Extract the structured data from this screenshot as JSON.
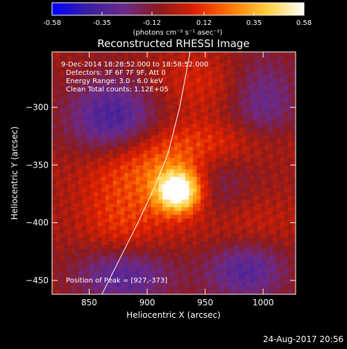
{
  "chart_data": {
    "type": "heatmap",
    "title": "Reconstructed RHESSI Image",
    "xlabel": "Heliocentric X (arcsec)",
    "ylabel": "Heliocentric Y (arcsec)",
    "xlim": [
      818,
      1028
    ],
    "ylim": [
      -462,
      -252
    ],
    "x_ticks": [
      850,
      900,
      950,
      1000
    ],
    "y_ticks": [
      -300,
      -350,
      -400,
      -450
    ],
    "colorbar": {
      "min": -0.58,
      "max": 0.58,
      "ticks": [
        "-0.58",
        "-0.35",
        "-0.12",
        "0.12",
        "0.35",
        "0.58"
      ],
      "tick_values": [
        -0.58,
        -0.35,
        -0.12,
        0.12,
        0.35,
        0.58
      ],
      "unit_label": "(photons cm⁻² s⁻¹ asec⁻²)",
      "colors": [
        "#0000ff",
        "#3a1fa0",
        "#6b2a8a",
        "#8b1a1a",
        "#e02000",
        "#ff7a00",
        "#ffd040",
        "#ffffff"
      ]
    },
    "annotations": [
      "9-Dec-2014 18:28:52.000 to 18:58:52.000",
      "Detectors: 3F 6F 7F 9F, Att 0",
      "Energy Range: 3.0 - 6.0 keV",
      "Clean    Total counts: 1.12E+05"
    ],
    "peak_label": "Position of Peak = [927,-373]",
    "peak": {
      "x": 927,
      "y": -373,
      "value": 0.58
    },
    "features": [
      {
        "kind": "source",
        "x": 927,
        "y": -373,
        "sx": 14,
        "sy": 13,
        "amp": 0.7
      },
      {
        "kind": "source",
        "x": 905,
        "y": -350,
        "sx": 40,
        "sy": 18,
        "amp": 0.2
      },
      {
        "kind": "source",
        "x": 960,
        "y": -330,
        "sx": 45,
        "sy": 14,
        "amp": 0.16
      },
      {
        "kind": "source",
        "x": 880,
        "y": -395,
        "sx": 26,
        "sy": 30,
        "amp": 0.18
      },
      {
        "kind": "source",
        "x": 980,
        "y": -405,
        "sx": 35,
        "sy": 18,
        "amp": 0.12
      },
      {
        "kind": "source",
        "x": 945,
        "y": -280,
        "sx": 30,
        "sy": 20,
        "amp": 0.12
      },
      {
        "kind": "negative",
        "x": 870,
        "y": -310,
        "sx": 28,
        "sy": 25,
        "amp": -0.32
      },
      {
        "kind": "negative",
        "x": 1000,
        "y": -295,
        "sx": 22,
        "sy": 30,
        "amp": -0.22
      },
      {
        "kind": "negative",
        "x": 880,
        "y": -445,
        "sx": 30,
        "sy": 18,
        "amp": -0.3
      },
      {
        "kind": "negative",
        "x": 985,
        "y": -440,
        "sx": 26,
        "sy": 20,
        "amp": -0.28
      },
      {
        "kind": "negative",
        "x": 960,
        "y": -365,
        "sx": 20,
        "sy": 25,
        "amp": -0.15
      }
    ],
    "limb_curve": {
      "x": [
        861,
        877,
        892,
        906,
        918,
        928,
        937
      ],
      "y": [
        -462,
        -430,
        -400,
        -370,
        -340,
        -300,
        -252
      ]
    }
  },
  "footer": {
    "timestamp": "24-Aug-2017 20:56"
  }
}
